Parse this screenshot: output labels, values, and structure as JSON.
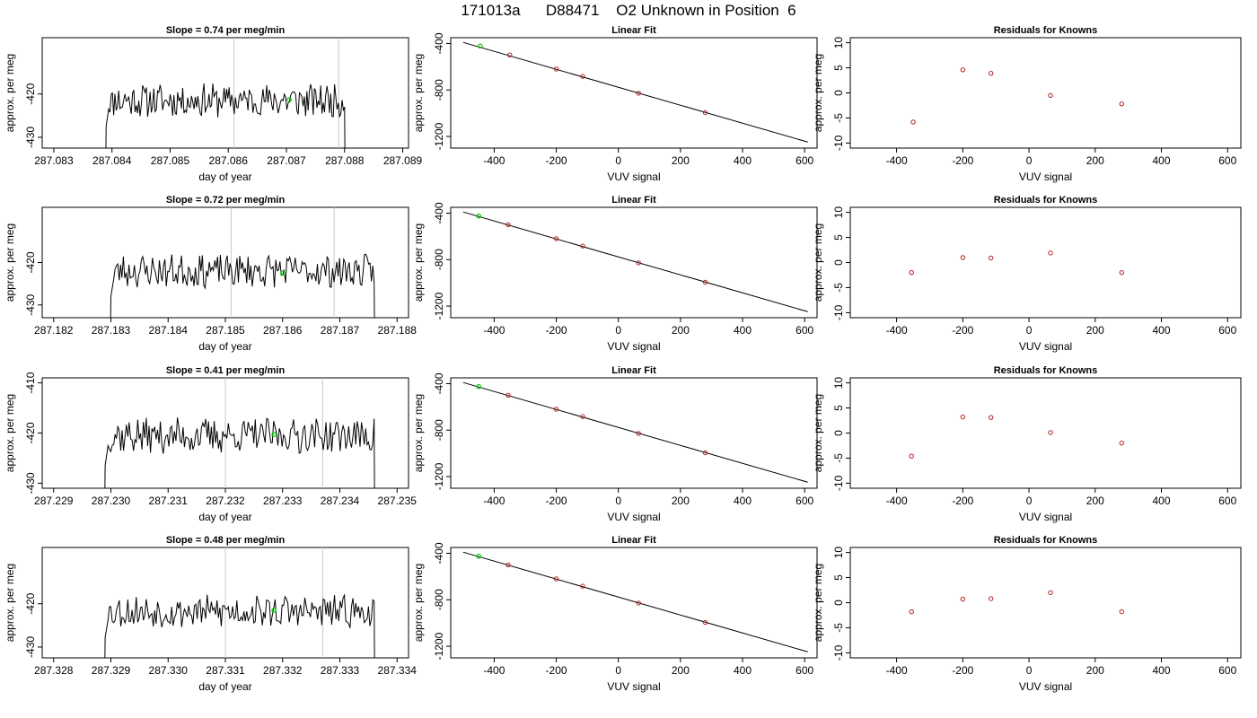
{
  "title": "171013a      D88471    O2 Unknown in Position  6",
  "colors": {
    "trace": "#000000",
    "unknown_point": "#00cc00",
    "known_point": "#b22222",
    "vline": "#c8c8c8"
  },
  "rows": [
    {
      "time_panel": {
        "title": "Slope =  0.74  per meg/min",
        "xlabel": "day of year",
        "ylabel": "approx. per meg",
        "xlim": [
          287.0828,
          287.0891
        ],
        "ylim": [
          -432.5,
          -407
        ],
        "xticks": [
          287.083,
          287.084,
          287.085,
          287.086,
          287.087,
          287.088,
          287.089
        ],
        "xtick_labels": [
          "287.083",
          "287.084",
          "287.085",
          "287.086",
          "287.087",
          "287.088",
          "287.089"
        ],
        "yticks": [
          -420,
          -430
        ],
        "ytick_labels": [
          "-420",
          "-430"
        ],
        "vlines": [
          287.0861,
          287.0879
        ],
        "signal": {
          "start": 287.0839,
          "end": 287.088,
          "mean": -421.5,
          "amp": 2.2,
          "seed": 11
        },
        "marker": {
          "x": 287.08705,
          "y": -421.3
        }
      },
      "fit_panel": {
        "title": "Linear Fit",
        "xlabel": "VUV signal",
        "ylabel": "approx. per meg",
        "xlim": [
          -540,
          640
        ],
        "ylim": [
          -1300,
          -350
        ],
        "xticks": [
          -400,
          -200,
          0,
          200,
          400,
          600
        ],
        "xtick_labels": [
          "-400",
          "-200",
          "0",
          "200",
          "400",
          "600"
        ],
        "yticks": [
          -400,
          -800,
          -1200
        ],
        "ytick_labels": [
          "-400",
          "-800",
          "-1200"
        ],
        "line": [
          [
            -500,
            -390
          ],
          [
            610,
            -1248
          ]
        ],
        "knowns": [
          [
            -350,
            -498
          ],
          [
            -200,
            -620
          ],
          [
            -115,
            -683
          ],
          [
            65,
            -828
          ],
          [
            280,
            -995
          ]
        ],
        "unknown": [
          -445,
          -422
        ]
      },
      "resid_panel": {
        "title": "Residuals for Knowns",
        "xlabel": "VUV signal",
        "ylabel": "approx. per meg",
        "xlim": [
          -540,
          640
        ],
        "ylim": [
          -11,
          11
        ],
        "xticks": [
          -400,
          -200,
          0,
          200,
          400,
          600
        ],
        "xtick_labels": [
          "-400",
          "-200",
          "0",
          "200",
          "400",
          "600"
        ],
        "yticks": [
          10,
          5,
          0,
          -5,
          -10
        ],
        "ytick_labels": [
          "10",
          "5",
          "0",
          "-5",
          "-10"
        ],
        "points": [
          [
            -350,
            -5.8
          ],
          [
            -200,
            4.6
          ],
          [
            -115,
            3.9
          ],
          [
            65,
            -0.5
          ],
          [
            280,
            -2.2
          ]
        ]
      }
    },
    {
      "time_panel": {
        "title": "Slope =  0.72  per meg/min",
        "xlabel": "day of year",
        "ylabel": "approx. per meg",
        "xlim": [
          287.1818,
          287.1882
        ],
        "ylim": [
          -433,
          -407
        ],
        "xticks": [
          287.182,
          287.183,
          287.184,
          287.185,
          287.186,
          287.187,
          287.188
        ],
        "xtick_labels": [
          "287.182",
          "287.183",
          "287.184",
          "287.185",
          "287.186",
          "287.187",
          "287.188"
        ],
        "yticks": [
          -420,
          -430
        ],
        "ytick_labels": [
          "-420",
          "-430"
        ],
        "vlines": [
          287.1851,
          287.1869
        ],
        "signal": {
          "start": 287.183,
          "end": 287.1876,
          "mean": -422.0,
          "amp": 2.2,
          "seed": 23
        },
        "marker": {
          "x": 287.186,
          "y": -422.5
        }
      },
      "fit_panel": {
        "title": "Linear Fit",
        "xlabel": "VUV signal",
        "ylabel": "approx. per meg",
        "xlim": [
          -540,
          640
        ],
        "ylim": [
          -1300,
          -350
        ],
        "xticks": [
          -400,
          -200,
          0,
          200,
          400,
          600
        ],
        "xtick_labels": [
          "-400",
          "-200",
          "0",
          "200",
          "400",
          "600"
        ],
        "yticks": [
          -400,
          -800,
          -1200
        ],
        "ytick_labels": [
          "-400",
          "-800",
          "-1200"
        ],
        "line": [
          [
            -500,
            -390
          ],
          [
            610,
            -1248
          ]
        ],
        "knowns": [
          [
            -355,
            -500
          ],
          [
            -200,
            -620
          ],
          [
            -115,
            -683
          ],
          [
            65,
            -828
          ],
          [
            280,
            -995
          ]
        ],
        "unknown": [
          -450,
          -425
        ]
      },
      "resid_panel": {
        "title": "Residuals for Knowns",
        "xlabel": "VUV signal",
        "ylabel": "approx. per meg",
        "xlim": [
          -540,
          640
        ],
        "ylim": [
          -11,
          11
        ],
        "xticks": [
          -400,
          -200,
          0,
          200,
          400,
          600
        ],
        "xtick_labels": [
          "-400",
          "-200",
          "0",
          "200",
          "400",
          "600"
        ],
        "yticks": [
          10,
          5,
          0,
          -5,
          -10
        ],
        "ytick_labels": [
          "10",
          "5",
          "0",
          "-5",
          "-10"
        ],
        "points": [
          [
            -355,
            -2.0
          ],
          [
            -200,
            1.0
          ],
          [
            -115,
            0.9
          ],
          [
            65,
            1.9
          ],
          [
            280,
            -2.0
          ]
        ]
      }
    },
    {
      "time_panel": {
        "title": "Slope =  0.41  per meg/min",
        "xlabel": "day of year",
        "ylabel": "approx. per meg",
        "xlim": [
          287.2288,
          287.2352
        ],
        "ylim": [
          -431,
          -409
        ],
        "xticks": [
          287.229,
          287.23,
          287.231,
          287.232,
          287.233,
          287.234,
          287.235
        ],
        "xtick_labels": [
          "287.229",
          "287.230",
          "287.231",
          "287.232",
          "287.233",
          "287.234",
          "287.235"
        ],
        "yticks": [
          -410,
          -420,
          -430
        ],
        "ytick_labels": [
          "-410",
          "-420",
          "-430"
        ],
        "vlines": [
          287.232,
          287.2337
        ],
        "signal": {
          "start": 287.2299,
          "end": 287.2346,
          "mean": -420.5,
          "amp": 2.0,
          "seed": 37
        },
        "marker": {
          "x": 287.23285,
          "y": -420.3
        }
      },
      "fit_panel": {
        "title": "Linear Fit",
        "xlabel": "VUV signal",
        "ylabel": "approx. per meg",
        "xlim": [
          -540,
          640
        ],
        "ylim": [
          -1300,
          -350
        ],
        "xticks": [
          -400,
          -200,
          0,
          200,
          400,
          600
        ],
        "xtick_labels": [
          "-400",
          "-200",
          "0",
          "200",
          "400",
          "600"
        ],
        "yticks": [
          -400,
          -800,
          -1200
        ],
        "ytick_labels": [
          "-400",
          "-800",
          "-1200"
        ],
        "line": [
          [
            -500,
            -390
          ],
          [
            610,
            -1248
          ]
        ],
        "knowns": [
          [
            -355,
            -500
          ],
          [
            -200,
            -620
          ],
          [
            -115,
            -683
          ],
          [
            65,
            -828
          ],
          [
            280,
            -995
          ]
        ],
        "unknown": [
          -450,
          -425
        ]
      },
      "resid_panel": {
        "title": "Residuals for Knowns",
        "xlabel": "VUV signal",
        "ylabel": "approx. per meg",
        "xlim": [
          -540,
          640
        ],
        "ylim": [
          -11,
          11
        ],
        "xticks": [
          -400,
          -200,
          0,
          200,
          400,
          600
        ],
        "xtick_labels": [
          "-400",
          "-200",
          "0",
          "200",
          "400",
          "600"
        ],
        "yticks": [
          10,
          5,
          0,
          -5,
          -10
        ],
        "ytick_labels": [
          "10",
          "5",
          "0",
          "-5",
          "-10"
        ],
        "points": [
          [
            -355,
            -4.6
          ],
          [
            -200,
            3.2
          ],
          [
            -115,
            3.1
          ],
          [
            65,
            0.1
          ],
          [
            280,
            -2.0
          ]
        ]
      }
    },
    {
      "time_panel": {
        "title": "Slope =  0.48  per meg/min",
        "xlabel": "day of year",
        "ylabel": "approx. per meg",
        "xlim": [
          287.3278,
          287.3342
        ],
        "ylim": [
          -432.5,
          -407
        ],
        "xticks": [
          287.328,
          287.329,
          287.33,
          287.331,
          287.332,
          287.333,
          287.334
        ],
        "xtick_labels": [
          "287.328",
          "287.329",
          "287.330",
          "287.331",
          "287.332",
          "287.333",
          "287.334"
        ],
        "yticks": [
          -420,
          -430
        ],
        "ytick_labels": [
          "-420",
          "-430"
        ],
        "vlines": [
          287.331,
          287.3327
        ],
        "signal": {
          "start": 287.3289,
          "end": 287.3336,
          "mean": -421.8,
          "amp": 2.1,
          "seed": 53
        },
        "marker": {
          "x": 287.33185,
          "y": -421.5
        }
      },
      "fit_panel": {
        "title": "Linear Fit",
        "xlabel": "VUV signal",
        "ylabel": "approx. per meg",
        "xlim": [
          -540,
          640
        ],
        "ylim": [
          -1300,
          -350
        ],
        "xticks": [
          -400,
          -200,
          0,
          200,
          400,
          600
        ],
        "xtick_labels": [
          "-400",
          "-200",
          "0",
          "200",
          "400",
          "600"
        ],
        "yticks": [
          -400,
          -800,
          -1200
        ],
        "ytick_labels": [
          "-400",
          "-800",
          "-1200"
        ],
        "line": [
          [
            -500,
            -390
          ],
          [
            610,
            -1248
          ]
        ],
        "knowns": [
          [
            -355,
            -500
          ],
          [
            -200,
            -620
          ],
          [
            -115,
            -683
          ],
          [
            65,
            -828
          ],
          [
            280,
            -995
          ]
        ],
        "unknown": [
          -450,
          -425
        ]
      },
      "resid_panel": {
        "title": "Residuals for Knowns",
        "xlabel": "VUV signal",
        "ylabel": "approx. per meg",
        "xlim": [
          -540,
          640
        ],
        "ylim": [
          -11,
          11
        ],
        "xticks": [
          -400,
          -200,
          0,
          200,
          400,
          600
        ],
        "xtick_labels": [
          "-400",
          "-200",
          "0",
          "200",
          "400",
          "600"
        ],
        "yticks": [
          10,
          5,
          0,
          -5,
          -10
        ],
        "ytick_labels": [
          "10",
          "5",
          "0",
          "-5",
          "-10"
        ],
        "points": [
          [
            -355,
            -1.8
          ],
          [
            -200,
            0.7
          ],
          [
            -115,
            0.8
          ],
          [
            65,
            2.0
          ],
          [
            280,
            -1.8
          ]
        ]
      }
    }
  ],
  "chart_data": [
    {
      "type": "line",
      "title": "Slope =  0.74  per meg/min",
      "xlabel": "day of year",
      "ylabel": "approx. per meg",
      "xlim": [
        287.0828,
        287.0891
      ]
    },
    {
      "type": "scatter",
      "title": "Linear Fit",
      "xlabel": "VUV signal",
      "ylabel": "approx. per meg",
      "x": [
        -350,
        -200,
        -115,
        65,
        280
      ],
      "y": [
        -498,
        -620,
        -683,
        -828,
        -995
      ]
    },
    {
      "type": "scatter",
      "title": "Residuals for Knowns",
      "xlabel": "VUV signal",
      "ylabel": "approx. per meg",
      "x": [
        -350,
        -200,
        -115,
        65,
        280
      ],
      "y": [
        -5.8,
        4.6,
        3.9,
        -0.5,
        -2.2
      ]
    },
    {
      "type": "line",
      "title": "Slope =  0.72  per meg/min",
      "xlabel": "day of year",
      "ylabel": "approx. per meg",
      "xlim": [
        287.1818,
        287.1882
      ]
    },
    {
      "type": "scatter",
      "title": "Linear Fit",
      "xlabel": "VUV signal",
      "ylabel": "approx. per meg",
      "x": [
        -355,
        -200,
        -115,
        65,
        280
      ],
      "y": [
        -500,
        -620,
        -683,
        -828,
        -995
      ]
    },
    {
      "type": "scatter",
      "title": "Residuals for Knowns",
      "xlabel": "VUV signal",
      "ylabel": "approx. per meg",
      "x": [
        -355,
        -200,
        -115,
        65,
        280
      ],
      "y": [
        -2.0,
        1.0,
        0.9,
        1.9,
        -2.0
      ]
    },
    {
      "type": "line",
      "title": "Slope =  0.41  per meg/min",
      "xlabel": "day of year",
      "ylabel": "approx. per meg",
      "xlim": [
        287.2288,
        287.2352
      ]
    },
    {
      "type": "scatter",
      "title": "Linear Fit",
      "xlabel": "VUV signal",
      "ylabel": "approx. per meg",
      "x": [
        -355,
        -200,
        -115,
        65,
        280
      ],
      "y": [
        -500,
        -620,
        -683,
        -828,
        -995
      ]
    },
    {
      "type": "scatter",
      "title": "Residuals for Knowns",
      "xlabel": "VUV signal",
      "ylabel": "approx. per meg",
      "x": [
        -355,
        -200,
        -115,
        65,
        280
      ],
      "y": [
        -4.6,
        3.2,
        3.1,
        0.1,
        -2.0
      ]
    },
    {
      "type": "line",
      "title": "Slope =  0.48  per meg/min",
      "xlabel": "day of year",
      "ylabel": "approx. per meg",
      "xlim": [
        287.3278,
        287.3342
      ]
    },
    {
      "type": "scatter",
      "title": "Linear Fit",
      "xlabel": "VUV signal",
      "ylabel": "approx. per meg",
      "x": [
        -355,
        -200,
        -115,
        65,
        280
      ],
      "y": [
        -500,
        -620,
        -683,
        -828,
        -995
      ]
    },
    {
      "type": "scatter",
      "title": "Residuals for Knowns",
      "xlabel": "VUV signal",
      "ylabel": "approx. per meg",
      "x": [
        -355,
        -200,
        -115,
        65,
        280
      ],
      "y": [
        -1.8,
        0.7,
        0.8,
        2.0,
        -1.8
      ]
    }
  ]
}
